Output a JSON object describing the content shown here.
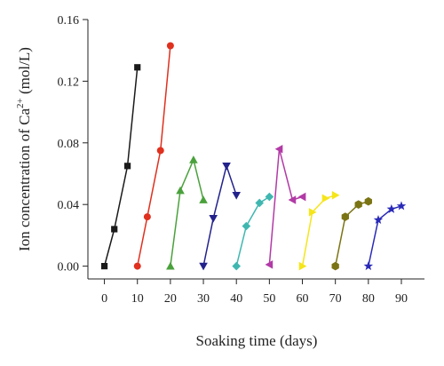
{
  "chart_data": {
    "type": "scatter",
    "xlabel": "Soaking time (days)",
    "ylabel": "Ion concentration of Ca",
    "ylabel_sup": "2+",
    "ylabel_unit": " (mol/L)",
    "xlim": [
      -5,
      97
    ],
    "ylim": [
      -0.0083,
      0.16
    ],
    "xticks": [
      0,
      10,
      20,
      30,
      40,
      50,
      60,
      70,
      80,
      90
    ],
    "yticks": [
      0.0,
      0.04,
      0.08,
      0.12,
      0.16
    ],
    "ytick_labels": [
      "0.00",
      "0.04",
      "0.08",
      "0.12",
      "0.16"
    ],
    "grid": false,
    "series": [
      {
        "color": "#1a1a1a",
        "marker": "square",
        "x": [
          0,
          3,
          7,
          10
        ],
        "y": [
          0.0,
          0.024,
          0.065,
          0.129
        ]
      },
      {
        "color": "#e0301e",
        "marker": "circle",
        "x": [
          10,
          13,
          17,
          20
        ],
        "y": [
          0.0,
          0.032,
          0.075,
          0.143
        ]
      },
      {
        "color": "#4aa13c",
        "marker": "triangle-up",
        "x": [
          20,
          23,
          27,
          30
        ],
        "y": [
          0.0,
          0.049,
          0.069,
          0.043
        ]
      },
      {
        "color": "#23228c",
        "marker": "triangle-down",
        "x": [
          30,
          33,
          37,
          40
        ],
        "y": [
          0.0,
          0.031,
          0.065,
          0.046
        ]
      },
      {
        "color": "#3fb7b0",
        "marker": "diamond",
        "x": [
          40,
          43,
          47,
          50
        ],
        "y": [
          0.0,
          0.026,
          0.041,
          0.045
        ]
      },
      {
        "color": "#b23aa6",
        "marker": "triangle-left",
        "x": [
          50,
          53,
          57,
          60
        ],
        "y": [
          0.001,
          0.076,
          0.043,
          0.045
        ]
      },
      {
        "color": "#f5e51b",
        "marker": "triangle-right",
        "x": [
          60,
          63,
          67,
          70
        ],
        "y": [
          0.0,
          0.035,
          0.044,
          0.046
        ]
      },
      {
        "color": "#7b7414",
        "marker": "hexagon",
        "x": [
          70,
          73,
          77,
          80
        ],
        "y": [
          0.0,
          0.032,
          0.04,
          0.042
        ]
      },
      {
        "color": "#2a2ab8",
        "marker": "star",
        "x": [
          80,
          83,
          87,
          90
        ],
        "y": [
          0.0,
          0.03,
          0.037,
          0.039
        ]
      }
    ]
  }
}
